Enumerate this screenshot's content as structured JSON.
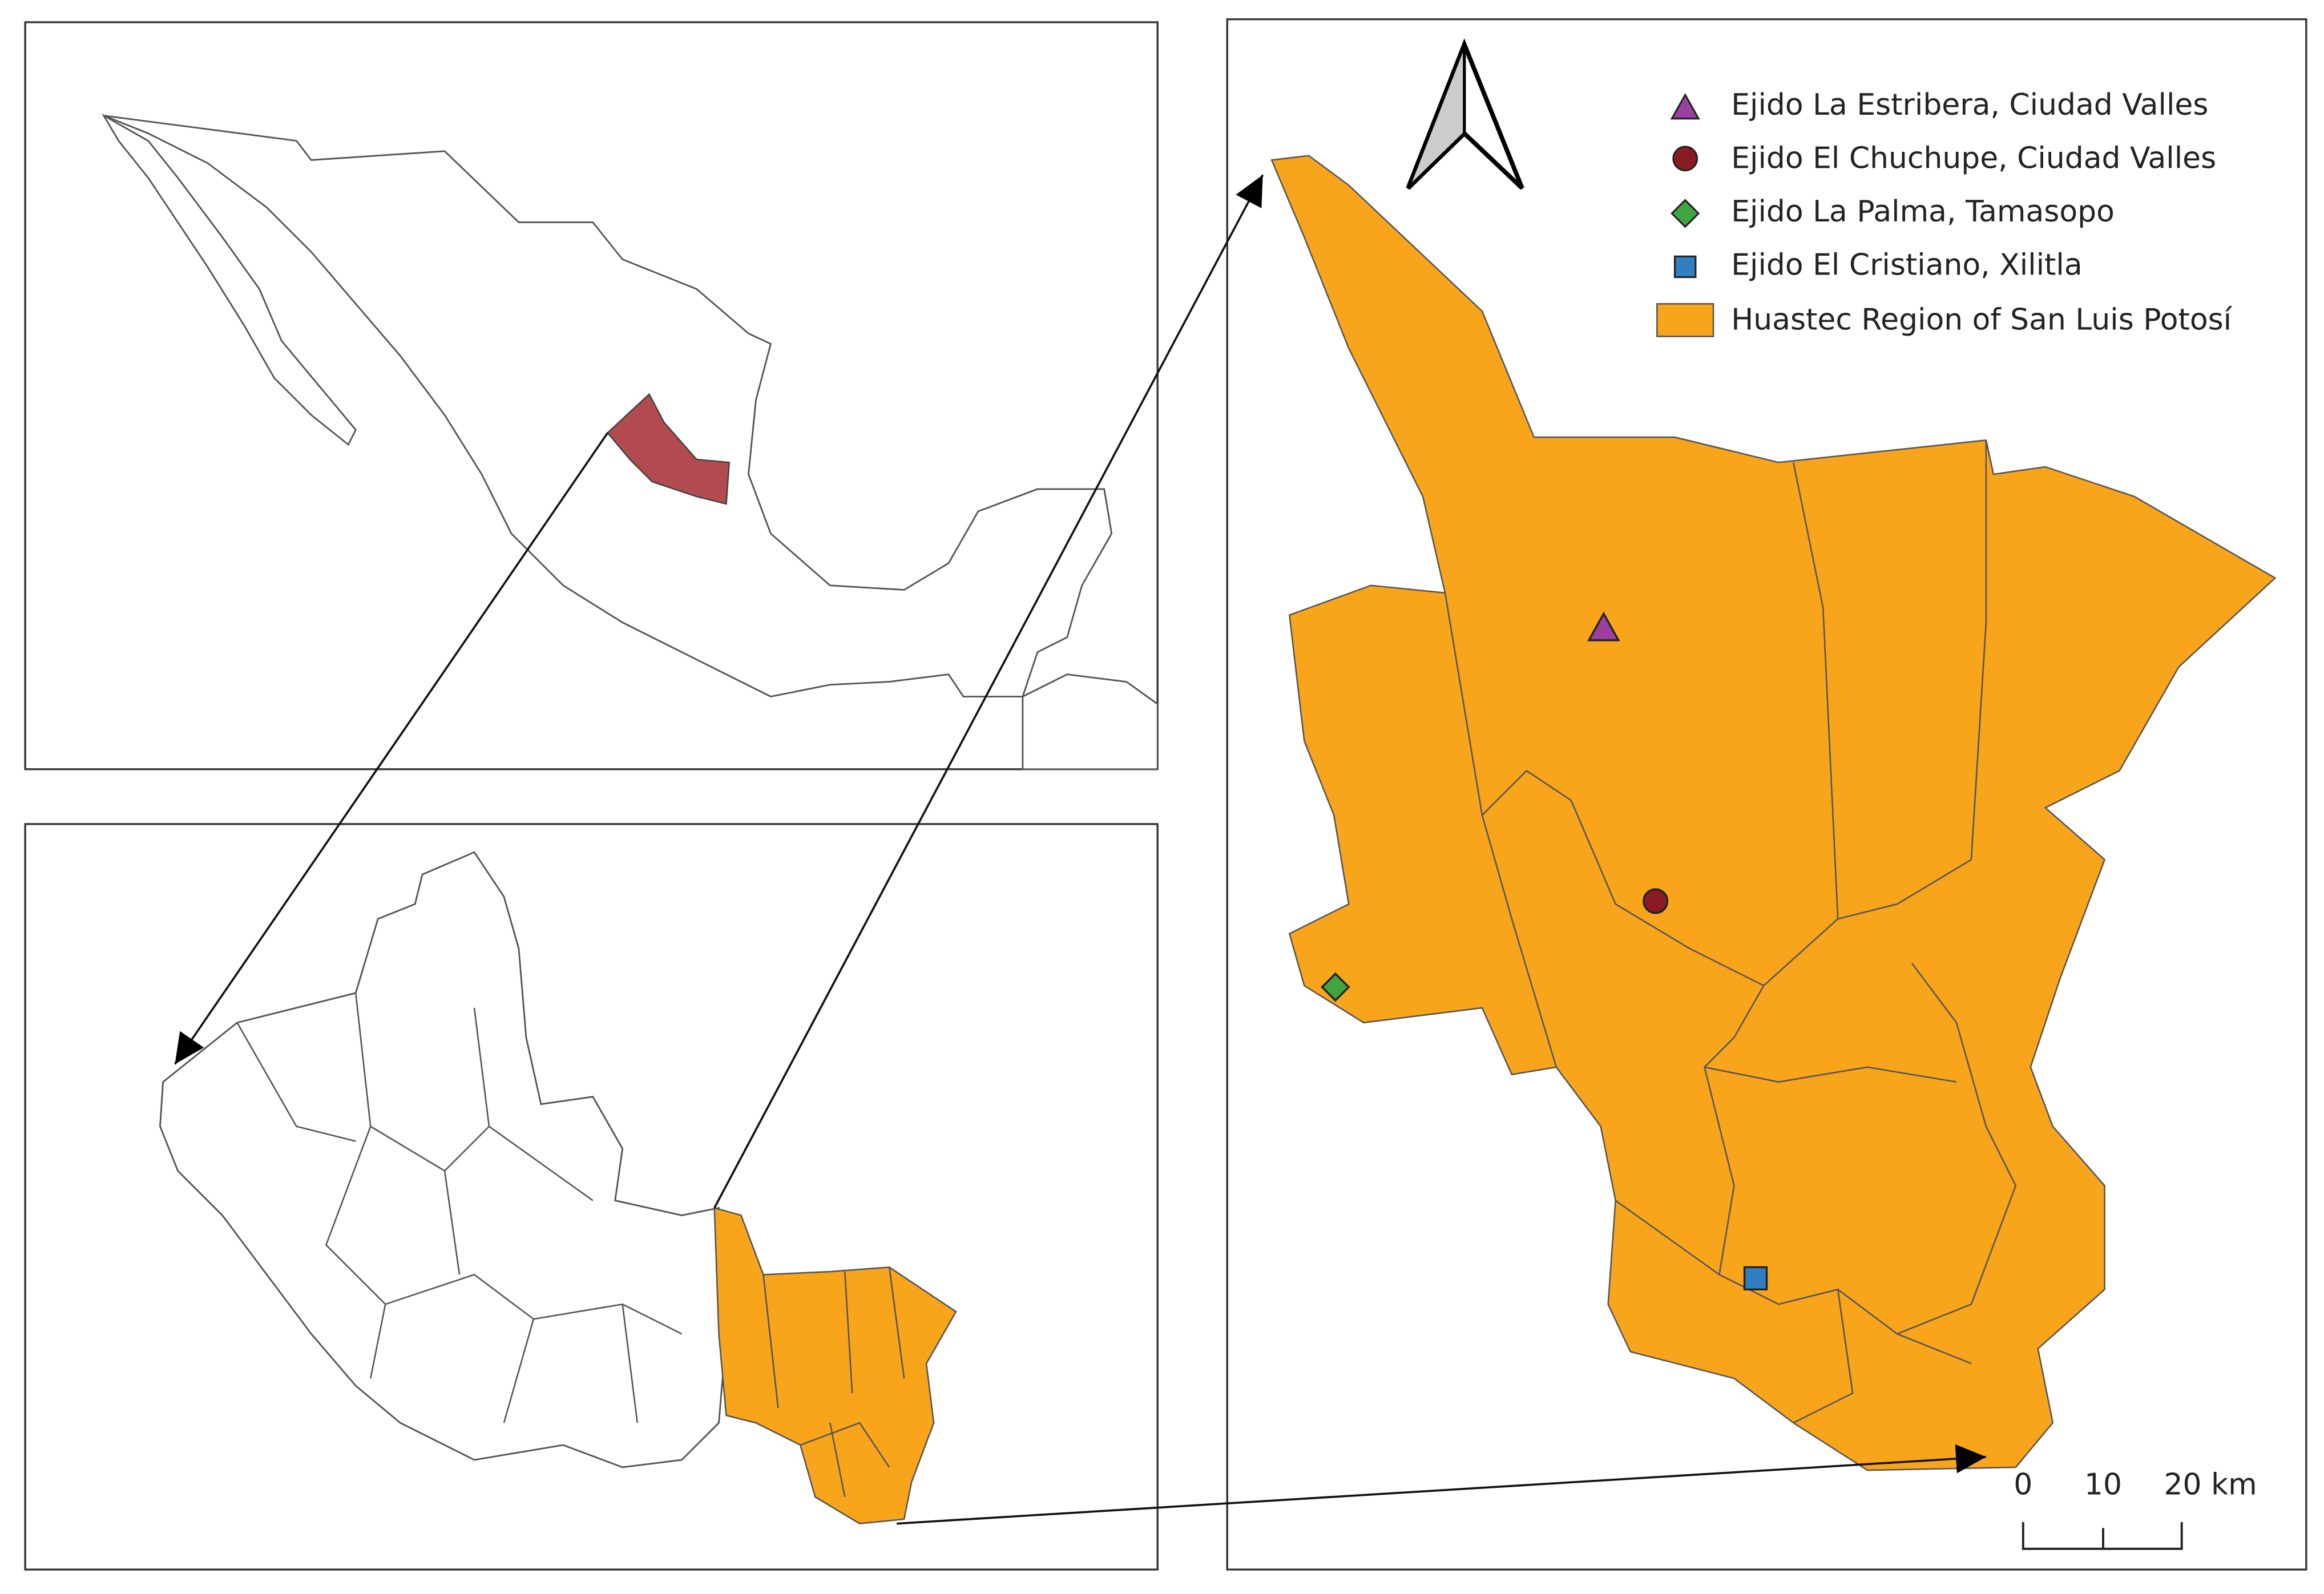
{
  "legend": {
    "items": [
      {
        "label": "Ejido La Estribera, Ciudad Valles"
      },
      {
        "label": "Ejido El Chuchupe, Ciudad Valles"
      },
      {
        "label": "Ejido La Palma, Tamasopo"
      },
      {
        "label": "Ejido El Cristiano, Xilitla"
      },
      {
        "label": "Huastec Region of San Luis Potosí"
      }
    ]
  },
  "scale_bar": {
    "labels": [
      "0",
      "10",
      "20 km"
    ]
  }
}
